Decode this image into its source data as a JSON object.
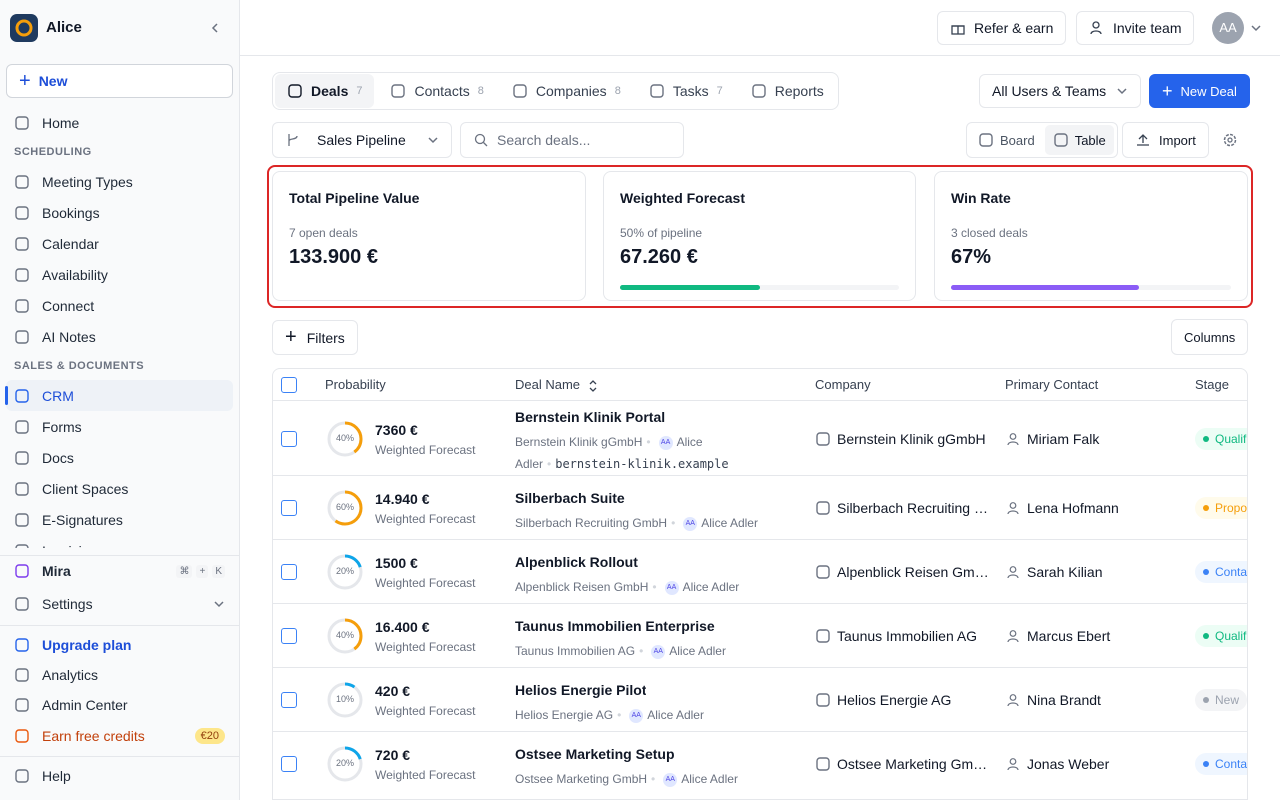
{
  "sidebar": {
    "workspace": "Alice",
    "new_button": "New",
    "nav": [
      {
        "type": "item",
        "label": "Home"
      },
      {
        "type": "section",
        "label": "SCHEDULING"
      },
      {
        "type": "item",
        "label": "Meeting Types"
      },
      {
        "type": "item",
        "label": "Bookings"
      },
      {
        "type": "item",
        "label": "Calendar"
      },
      {
        "type": "item",
        "label": "Availability"
      },
      {
        "type": "item",
        "label": "Connect"
      },
      {
        "type": "item",
        "label": "AI Notes"
      },
      {
        "type": "section",
        "label": "SALES & DOCUMENTS"
      },
      {
        "type": "item",
        "label": "CRM",
        "active": true
      },
      {
        "type": "item",
        "label": "Forms"
      },
      {
        "type": "item",
        "label": "Docs"
      },
      {
        "type": "item",
        "label": "Client Spaces"
      },
      {
        "type": "item",
        "label": "E-Signatures"
      },
      {
        "type": "item",
        "label": "Invoicing"
      }
    ],
    "mira": {
      "label": "Mira",
      "shortcut": [
        "⌘",
        "+",
        "K"
      ]
    },
    "settings": "Settings",
    "upgrade": "Upgrade plan",
    "analytics": "Analytics",
    "admin": "Admin Center",
    "credits": {
      "label": "Earn free credits",
      "badge": "€20"
    },
    "help": "Help"
  },
  "topbar": {
    "refer": "Refer & earn",
    "invite": "Invite team",
    "avatar": "AA"
  },
  "tabs": [
    {
      "label": "Deals",
      "count": 7,
      "active": true
    },
    {
      "label": "Contacts",
      "count": 8
    },
    {
      "label": "Companies",
      "count": 8
    },
    {
      "label": "Tasks",
      "count": 7
    },
    {
      "label": "Reports"
    }
  ],
  "users_filter": "All Users & Teams",
  "new_deal": "New Deal",
  "pipeline": "Sales Pipeline",
  "search_placeholder": "Search deals...",
  "views": [
    {
      "label": "Board"
    },
    {
      "label": "Table",
      "active": true
    }
  ],
  "import": "Import",
  "stats": [
    {
      "title": "Total Pipeline Value",
      "subtitle": "7 open deals",
      "value": "133.900 €"
    },
    {
      "title": "Weighted Forecast",
      "subtitle": "50% of pipeline",
      "value": "67.260 €",
      "progress": 50,
      "color": "#10b981"
    },
    {
      "title": "Win Rate",
      "subtitle": "3 closed deals",
      "value": "67%",
      "progress": 67,
      "color": "#8b5cf6"
    }
  ],
  "filters": "Filters",
  "columns_button": "Columns",
  "table": {
    "headers": [
      "Probability",
      "Deal Name",
      "Company",
      "Primary Contact",
      "Stage"
    ],
    "rows": [
      {
        "probability": 40,
        "probability_label": "40%",
        "ring_color": "#f59e0b",
        "amount": "7360 €",
        "amount_label": "Weighted Forecast",
        "name": "Bernstein Klinik Portal",
        "company": "Bernstein Klinik gGmbH",
        "owner_initials": "AA",
        "owner": "Alice Adler",
        "domain": "bernstein-klinik.example",
        "contact": "Miriam Falk",
        "stage": "Qualified",
        "stage_color": "#10b981",
        "stage_bg": "#ecfdf5"
      },
      {
        "probability": 60,
        "probability_label": "60%",
        "ring_color": "#f59e0b",
        "amount": "14.940 €",
        "amount_label": "Weighted Forecast",
        "name": "Silberbach Suite",
        "company": "Silberbach Recruiting GmbH",
        "owner_initials": "AA",
        "owner": "Alice Adler",
        "contact": "Lena Hofmann",
        "stage": "Proposal",
        "stage_color": "#f59e0b",
        "stage_bg": "#fffbeb"
      },
      {
        "probability": 20,
        "probability_label": "20%",
        "ring_color": "#0ea5e9",
        "amount": "1500 €",
        "amount_label": "Weighted Forecast",
        "name": "Alpenblick Rollout",
        "company": "Alpenblick Reisen GmbH",
        "owner_initials": "AA",
        "owner": "Alice Adler",
        "contact": "Sarah Kilian",
        "stage": "Contacted",
        "stage_color": "#3b82f6",
        "stage_bg": "#eff6ff"
      },
      {
        "probability": 40,
        "probability_label": "40%",
        "ring_color": "#f59e0b",
        "amount": "16.400 €",
        "amount_label": "Weighted Forecast",
        "name": "Taunus Immobilien Enterprise",
        "company": "Taunus Immobilien AG",
        "owner_initials": "AA",
        "owner": "Alice Adler",
        "contact": "Marcus Ebert",
        "stage": "Qualified",
        "stage_color": "#10b981",
        "stage_bg": "#ecfdf5"
      },
      {
        "probability": 10,
        "probability_label": "10%",
        "ring_color": "#0ea5e9",
        "amount": "420 €",
        "amount_label": "Weighted Forecast",
        "name": "Helios Energie Pilot",
        "company": "Helios Energie AG",
        "owner_initials": "AA",
        "owner": "Alice Adler",
        "contact": "Nina Brandt",
        "stage": "New",
        "stage_color": "#9ca3af",
        "stage_bg": "#f3f4f6"
      },
      {
        "probability": 20,
        "probability_label": "20%",
        "ring_color": "#0ea5e9",
        "amount": "720 €",
        "amount_label": "Weighted Forecast",
        "name": "Ostsee Marketing Setup",
        "company": "Ostsee Marketing GmbH",
        "owner_initials": "AA",
        "owner": "Alice Adler",
        "contact": "Jonas Weber",
        "stage": "Contacted",
        "stage_color": "#3b82f6",
        "stage_bg": "#eff6ff"
      }
    ]
  }
}
